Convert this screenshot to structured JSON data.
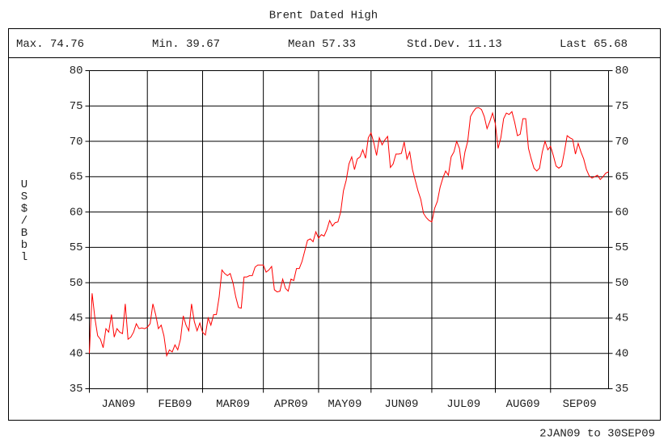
{
  "chart_data": {
    "type": "line",
    "title": "Brent Dated High",
    "stats": [
      {
        "label": "Max.",
        "value": 74.76
      },
      {
        "label": "Min.",
        "value": 39.67
      },
      {
        "label": "Mean",
        "value": 57.33
      },
      {
        "label": "Std.Dev.",
        "value": 11.13
      },
      {
        "label": "Last",
        "value": 65.68
      }
    ],
    "y_label": "US$/Bbl",
    "footer": "2JAN09 to 30SEP09",
    "color": "#ff0000",
    "grid": true,
    "ylim": [
      35,
      80
    ],
    "yticks": [
      35,
      40,
      45,
      50,
      55,
      60,
      65,
      70,
      75,
      80
    ],
    "xlim": [
      0,
      188
    ],
    "xticks": [
      {
        "value": 0,
        "label": "JAN09"
      },
      {
        "value": 21,
        "label": "FEB09"
      },
      {
        "value": 41,
        "label": "MAR09"
      },
      {
        "value": 63,
        "label": "APR09"
      },
      {
        "value": 83,
        "label": "MAY09"
      },
      {
        "value": 102,
        "label": "JUN09"
      },
      {
        "value": 124,
        "label": "JUL09"
      },
      {
        "value": 147,
        "label": "AUG09"
      },
      {
        "value": 167,
        "label": "SEP09"
      }
    ],
    "values": [
      40,
      48.5,
      45,
      42.5,
      42,
      40.8,
      43.5,
      43,
      45.5,
      42.3,
      43.5,
      43,
      42.8,
      47,
      42,
      42.3,
      43,
      44.2,
      43.5,
      43.6,
      43.5,
      43.7,
      44.2,
      47,
      45.5,
      43.5,
      44,
      42.5,
      39.67,
      40.5,
      40.2,
      41.2,
      40.5,
      42,
      45.3,
      44,
      43.2,
      47,
      44.5,
      43.2,
      44.3,
      43,
      42.6,
      45,
      44,
      45.5,
      45.5,
      48,
      51.8,
      51.3,
      51,
      51.3,
      50,
      48,
      46.5,
      46.4,
      50.8,
      50.8,
      51,
      51,
      52.2,
      52.5,
      52.5,
      52.5,
      51.5,
      51.8,
      52.3,
      49,
      48.7,
      48.8,
      50.5,
      49.2,
      48.8,
      50.5,
      50.3,
      52,
      52,
      53,
      54.5,
      56,
      56.2,
      55.8,
      57.2,
      56.3,
      56.8,
      56.6,
      57.5,
      58.8,
      58,
      58.5,
      58.6,
      60,
      63,
      64.5,
      66.8,
      67.8,
      66,
      67.5,
      67.8,
      68.8,
      67.6,
      70.5,
      71.2,
      69.8,
      68,
      70.5,
      69.5,
      70.2,
      70.7,
      66.3,
      66.8,
      68.2,
      68.2,
      68.3,
      69.9,
      67.5,
      68.5,
      66,
      64.5,
      63,
      61.8,
      59.8,
      59.2,
      58.8,
      58.6,
      60.5,
      61.5,
      63.5,
      64.8,
      65.8,
      65.2,
      67.8,
      68.5,
      70,
      69,
      66,
      68.5,
      70,
      73.5,
      74.2,
      74.7,
      74.76,
      74.5,
      73.5,
      71.8,
      72.8,
      74,
      72.5,
      69,
      70.5,
      73.2,
      74,
      73.8,
      74.2,
      72.7,
      70.8,
      71,
      73.2,
      73.2,
      69,
      67.5,
      66.2,
      65.8,
      66.2,
      68.5,
      70,
      68.8,
      69.3,
      68,
      66.5,
      66.2,
      66.5,
      68.5,
      70.8,
      70.5,
      70.3,
      68.2,
      69.7,
      68.5,
      67.5,
      66,
      65.1,
      64.8,
      65,
      65.2,
      64.6,
      65,
      65.5,
      65.68
    ]
  }
}
